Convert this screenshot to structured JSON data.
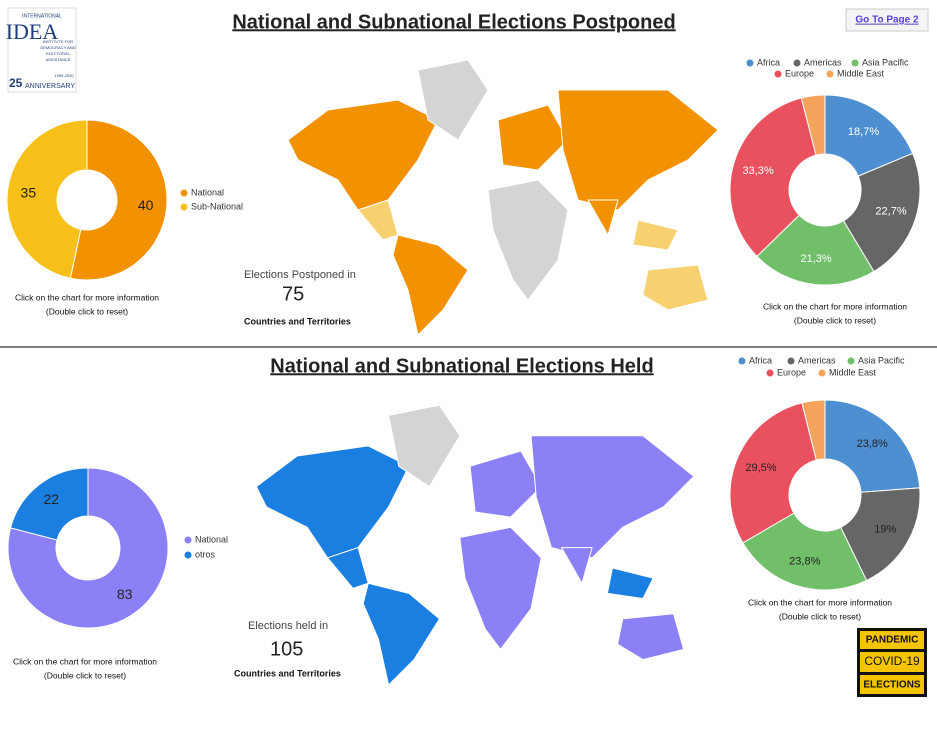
{
  "logo": {
    "top": "INTERNATIONAL",
    "name": "IDEA",
    "line1": "INSTITUTE FOR",
    "line2": "DEMOCRACY AND",
    "line3": "ELECTORAL",
    "line4": "ASSISTANCE",
    "years": "1995-2020",
    "number": "25",
    "anniversary": "ANNIVERSARY"
  },
  "link": "Go To Page 2",
  "sections": [
    {
      "title": "National and Subnational Elections Postponed",
      "stat_label": "Elections Postponed in",
      "stat_value": "75",
      "stat_sub": "Countries and Territories"
    },
    {
      "title": "National and Subnational Elections Held",
      "stat_label": "Elections held in",
      "stat_value": "105",
      "stat_sub": "Countries and Territories"
    }
  ],
  "badge": [
    "PANDEMIC",
    "COVID-19",
    "ELECTIONS"
  ],
  "chart_data": [
    {
      "type": "pie",
      "donut": true,
      "categories": [
        "National",
        "Sub-National"
      ],
      "values": [
        40,
        35
      ],
      "colors": [
        "#f39200",
        "#f7c019"
      ],
      "notes": [
        "Click on the chart for more information",
        "(Double click to reset)"
      ]
    },
    {
      "type": "pie",
      "donut": true,
      "categories": [
        "Africa",
        "Americas",
        "Asia Pacific",
        "Europe",
        "Middle East"
      ],
      "values": [
        18.7,
        22.7,
        21.3,
        33.3,
        4.0
      ],
      "value_labels": [
        "18,7%",
        "22,7%",
        "21,3%",
        "33,3%",
        null
      ],
      "colors": [
        "#4e8fd1",
        "#666666",
        "#72bf6a",
        "#e9515e",
        "#f6a35b"
      ],
      "notes": [
        "Click on the chart for more information",
        "(Double click to reset)"
      ]
    },
    {
      "type": "pie",
      "donut": true,
      "categories": [
        "National",
        "otros"
      ],
      "values": [
        83,
        22
      ],
      "colors": [
        "#8b80f5",
        "#1a7fe0"
      ],
      "notes": [
        "Click on the chart for more information",
        "(Double click to reset)"
      ]
    },
    {
      "type": "pie",
      "donut": true,
      "categories": [
        "Africa",
        "Americas",
        "Asia Pacific",
        "Europe",
        "Middle East"
      ],
      "values": [
        23.8,
        19,
        23.8,
        29.5,
        3.9
      ],
      "value_labels": [
        "23,8%",
        "19%",
        "23,8%",
        "29,5%",
        null
      ],
      "colors": [
        "#4e8fd1",
        "#666666",
        "#72bf6a",
        "#e9515e",
        "#f6a35b"
      ],
      "notes": [
        "Click on the chart for more information",
        "(Double click to reset)"
      ]
    }
  ]
}
